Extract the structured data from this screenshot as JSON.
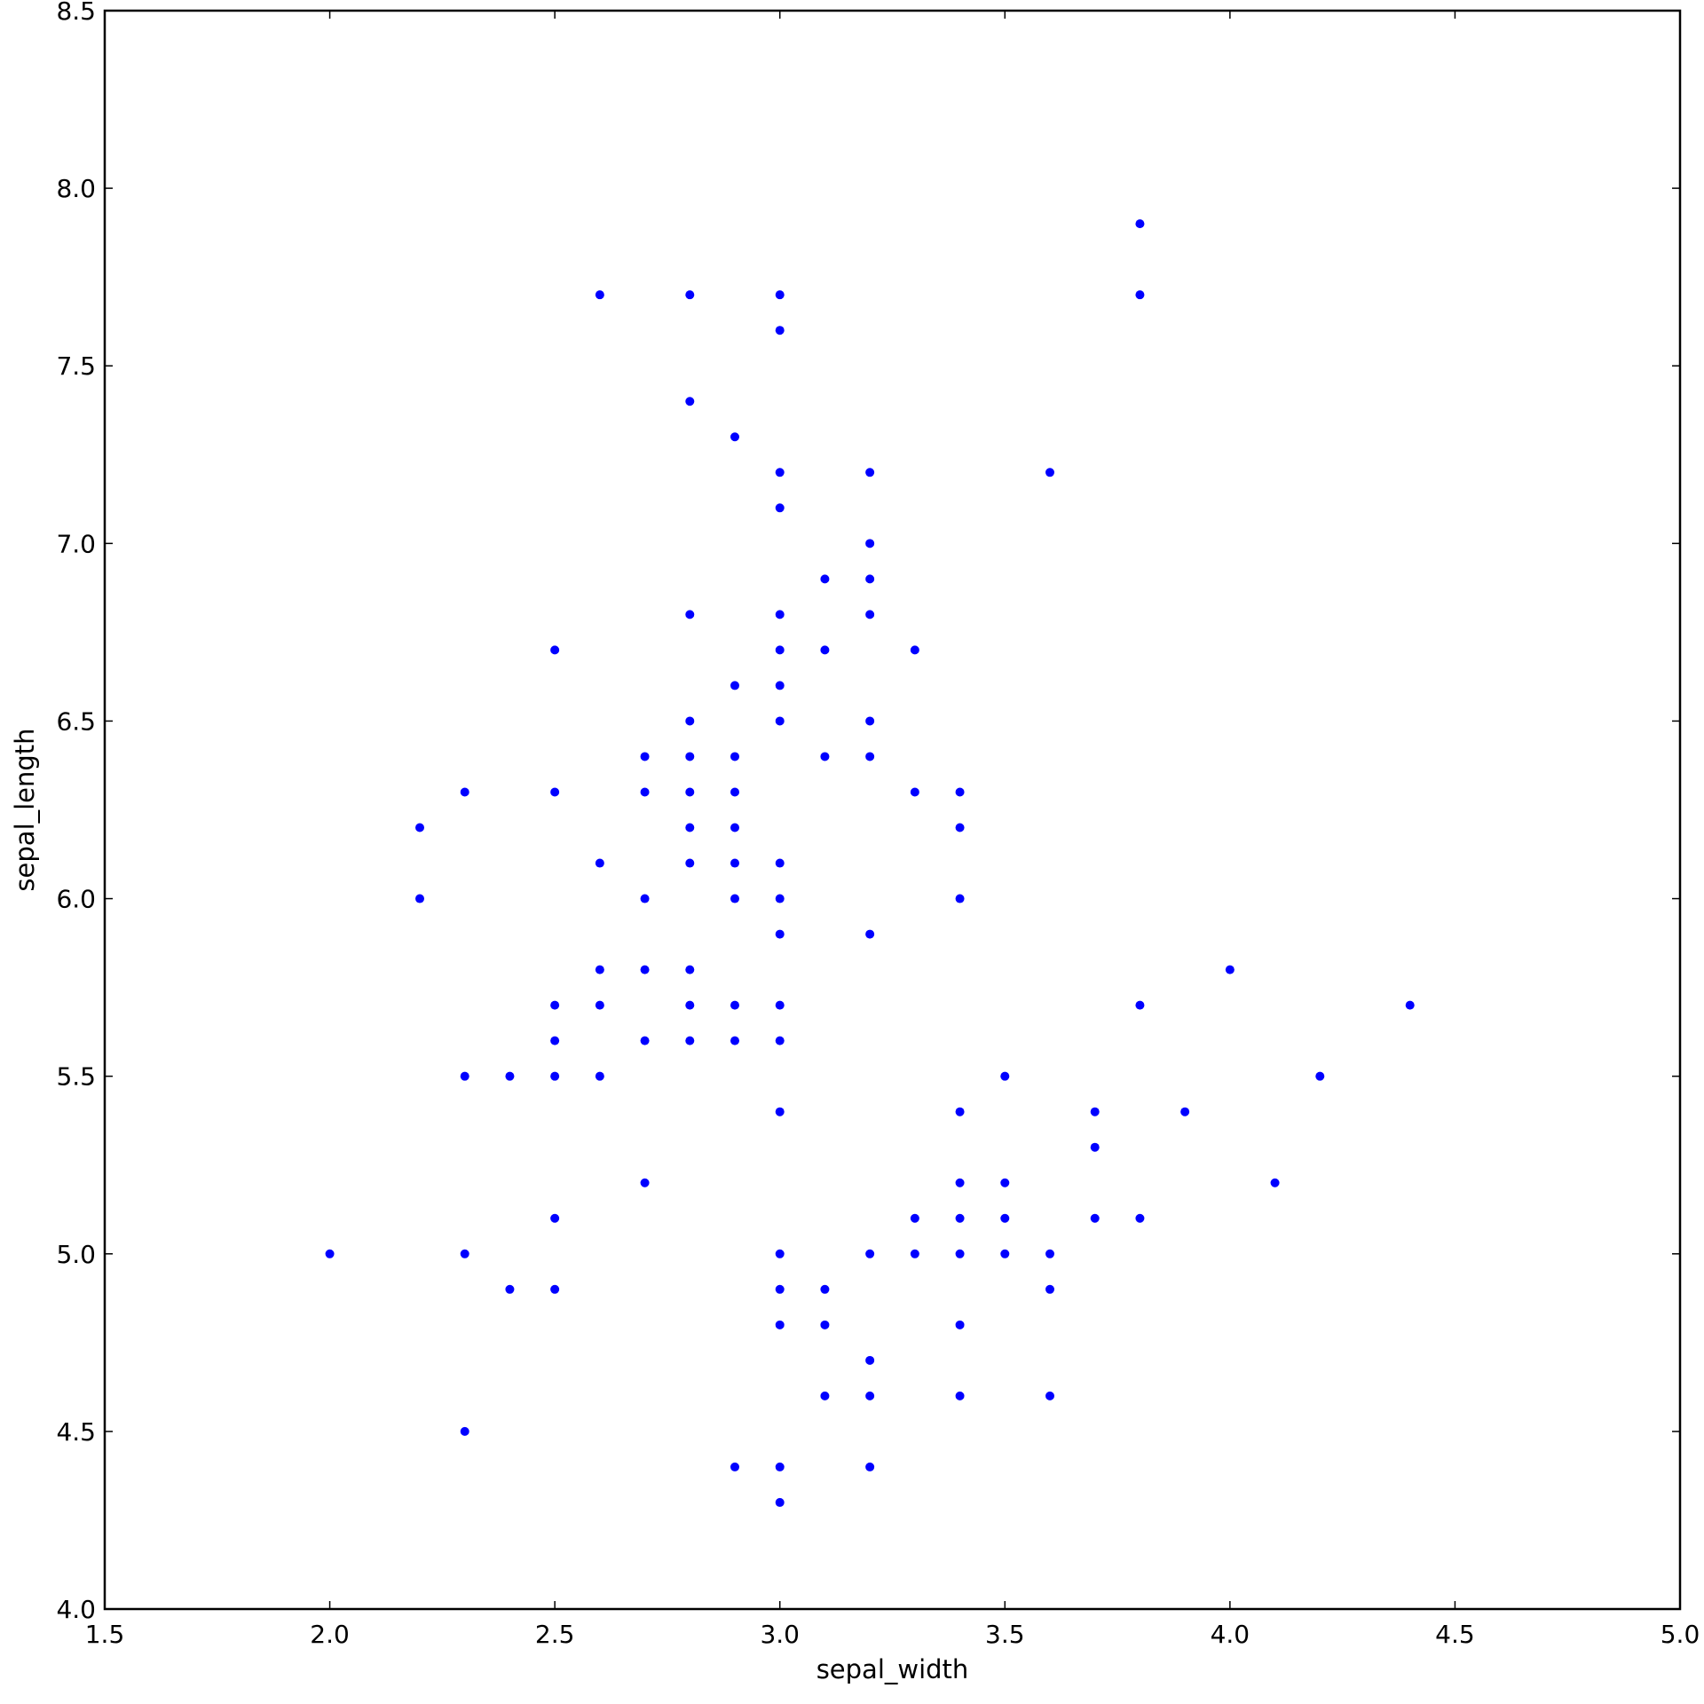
{
  "chart_data": {
    "type": "scatter",
    "title": "",
    "xlabel": "sepal_width",
    "ylabel": "sepal_length",
    "xlim": [
      1.5,
      5.0
    ],
    "ylim": [
      4.0,
      8.5
    ],
    "xticks": [
      1.5,
      2.0,
      2.5,
      3.0,
      3.5,
      4.0,
      4.5,
      5.0
    ],
    "yticks": [
      4.0,
      4.5,
      5.0,
      5.5,
      6.0,
      6.5,
      7.0,
      7.5,
      8.0,
      8.5
    ],
    "grid": false,
    "marker_color": "#0000ff",
    "points": [
      [
        2.0,
        5.0
      ],
      [
        2.2,
        6.0
      ],
      [
        2.2,
        6.2
      ],
      [
        2.3,
        4.5
      ],
      [
        2.3,
        5.0
      ],
      [
        2.3,
        5.5
      ],
      [
        2.3,
        6.3
      ],
      [
        2.4,
        4.9
      ],
      [
        2.4,
        5.5
      ],
      [
        2.5,
        4.9
      ],
      [
        2.5,
        5.1
      ],
      [
        2.5,
        5.5
      ],
      [
        2.5,
        5.6
      ],
      [
        2.5,
        5.7
      ],
      [
        2.5,
        6.3
      ],
      [
        2.5,
        6.7
      ],
      [
        2.6,
        5.5
      ],
      [
        2.6,
        5.7
      ],
      [
        2.6,
        5.8
      ],
      [
        2.6,
        6.1
      ],
      [
        2.6,
        7.7
      ],
      [
        2.7,
        5.2
      ],
      [
        2.7,
        5.6
      ],
      [
        2.7,
        5.8
      ],
      [
        2.7,
        6.0
      ],
      [
        2.7,
        6.3
      ],
      [
        2.7,
        6.4
      ],
      [
        2.8,
        5.6
      ],
      [
        2.8,
        5.7
      ],
      [
        2.8,
        5.8
      ],
      [
        2.8,
        6.1
      ],
      [
        2.8,
        6.2
      ],
      [
        2.8,
        6.3
      ],
      [
        2.8,
        6.4
      ],
      [
        2.8,
        6.5
      ],
      [
        2.8,
        6.8
      ],
      [
        2.8,
        7.4
      ],
      [
        2.8,
        7.7
      ],
      [
        2.9,
        4.4
      ],
      [
        2.9,
        5.6
      ],
      [
        2.9,
        5.7
      ],
      [
        2.9,
        6.0
      ],
      [
        2.9,
        6.1
      ],
      [
        2.9,
        6.2
      ],
      [
        2.9,
        6.3
      ],
      [
        2.9,
        6.4
      ],
      [
        2.9,
        6.6
      ],
      [
        2.9,
        7.3
      ],
      [
        3.0,
        4.3
      ],
      [
        3.0,
        4.4
      ],
      [
        3.0,
        4.8
      ],
      [
        3.0,
        4.9
      ],
      [
        3.0,
        5.0
      ],
      [
        3.0,
        5.4
      ],
      [
        3.0,
        5.6
      ],
      [
        3.0,
        5.7
      ],
      [
        3.0,
        5.9
      ],
      [
        3.0,
        6.0
      ],
      [
        3.0,
        6.1
      ],
      [
        3.0,
        6.5
      ],
      [
        3.0,
        6.6
      ],
      [
        3.0,
        6.7
      ],
      [
        3.0,
        6.8
      ],
      [
        3.0,
        7.1
      ],
      [
        3.0,
        7.2
      ],
      [
        3.0,
        7.6
      ],
      [
        3.0,
        7.7
      ],
      [
        3.1,
        4.6
      ],
      [
        3.1,
        4.8
      ],
      [
        3.1,
        4.9
      ],
      [
        3.1,
        6.4
      ],
      [
        3.1,
        6.7
      ],
      [
        3.1,
        6.9
      ],
      [
        3.2,
        4.4
      ],
      [
        3.2,
        4.6
      ],
      [
        3.2,
        4.7
      ],
      [
        3.2,
        5.0
      ],
      [
        3.2,
        5.9
      ],
      [
        3.2,
        6.4
      ],
      [
        3.2,
        6.5
      ],
      [
        3.2,
        6.8
      ],
      [
        3.2,
        6.9
      ],
      [
        3.2,
        7.0
      ],
      [
        3.2,
        7.2
      ],
      [
        3.3,
        5.0
      ],
      [
        3.3,
        5.1
      ],
      [
        3.3,
        6.3
      ],
      [
        3.3,
        6.7
      ],
      [
        3.4,
        4.6
      ],
      [
        3.4,
        4.8
      ],
      [
        3.4,
        5.0
      ],
      [
        3.4,
        5.1
      ],
      [
        3.4,
        5.2
      ],
      [
        3.4,
        5.4
      ],
      [
        3.4,
        6.0
      ],
      [
        3.4,
        6.2
      ],
      [
        3.4,
        6.3
      ],
      [
        3.5,
        5.0
      ],
      [
        3.5,
        5.1
      ],
      [
        3.5,
        5.2
      ],
      [
        3.5,
        5.5
      ],
      [
        3.6,
        4.6
      ],
      [
        3.6,
        4.9
      ],
      [
        3.6,
        5.0
      ],
      [
        3.6,
        7.2
      ],
      [
        3.7,
        5.1
      ],
      [
        3.7,
        5.3
      ],
      [
        3.7,
        5.4
      ],
      [
        3.8,
        5.1
      ],
      [
        3.8,
        5.7
      ],
      [
        3.8,
        7.7
      ],
      [
        3.8,
        7.9
      ],
      [
        3.9,
        5.4
      ],
      [
        4.0,
        5.8
      ],
      [
        4.1,
        5.2
      ],
      [
        4.2,
        5.5
      ],
      [
        4.4,
        5.7
      ]
    ]
  }
}
